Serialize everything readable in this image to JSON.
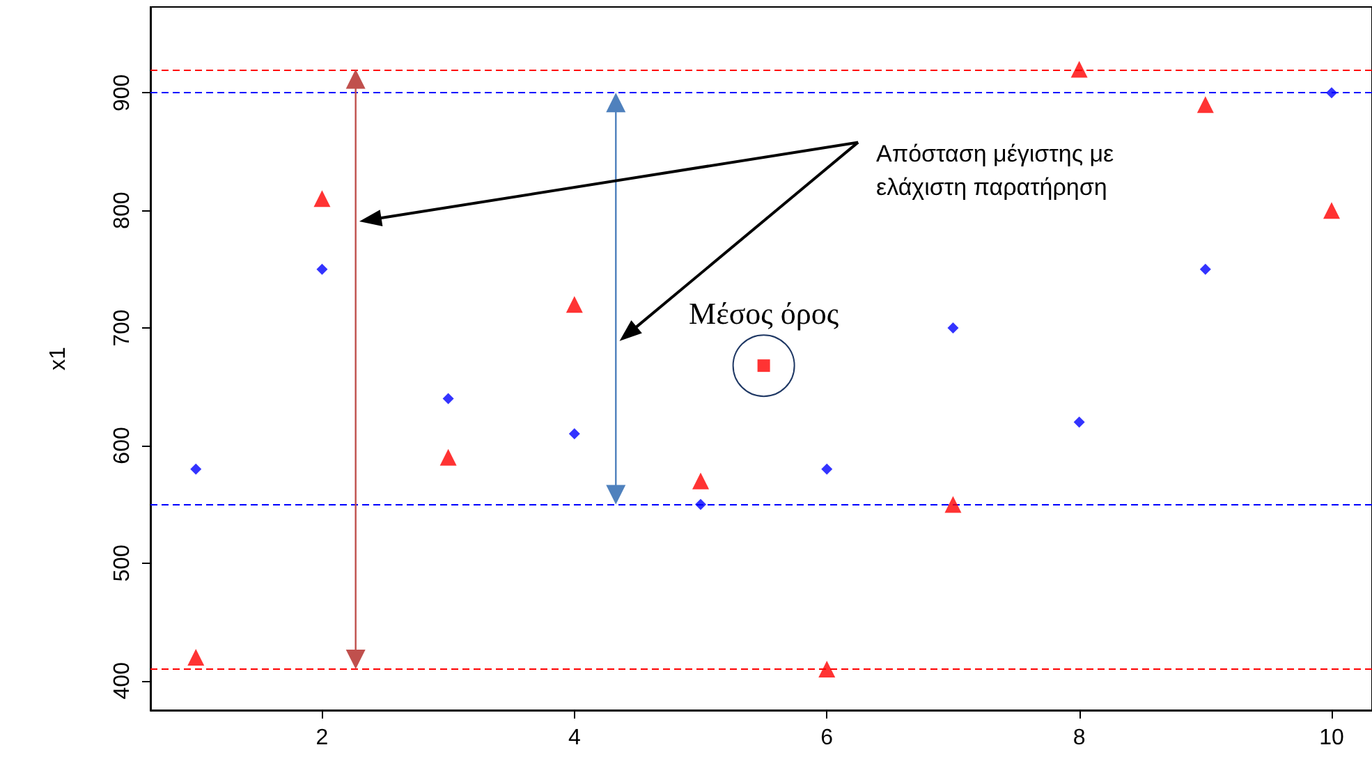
{
  "chart_data": {
    "type": "scatter",
    "ylabel": "x1",
    "x": [
      1,
      2,
      3,
      4,
      5,
      6,
      7,
      8,
      9,
      10
    ],
    "series": [
      {
        "color": "#0000ff",
        "marker": "diamond",
        "values": [
          580,
          750,
          640,
          610,
          550,
          580,
          700,
          620,
          750,
          900
        ]
      },
      {
        "color": "#ff0000",
        "marker": "triangle",
        "values": [
          420,
          810,
          590,
          720,
          570,
          410,
          550,
          920,
          890,
          800
        ]
      },
      {
        "color": "#ff0000",
        "marker": "square",
        "x": [
          5.5
        ],
        "values": [
          668
        ]
      }
    ],
    "xlim": [
      0.64,
      10.32
    ],
    "xticks": [
      2,
      4,
      6,
      8,
      10
    ],
    "ylim": [
      375,
      973
    ],
    "yticks": [
      400,
      500,
      600,
      700,
      800,
      900
    ],
    "grid": false,
    "ref_lines": [
      {
        "axis": "y",
        "value": 900,
        "color": "#0000ff",
        "line_style": "dashed"
      },
      {
        "axis": "y",
        "value": 550,
        "color": "#0000ff",
        "line_style": "dashed"
      },
      {
        "axis": "y",
        "value": 920,
        "color": "#ff0000",
        "line_style": "dashed"
      },
      {
        "axis": "y",
        "value": 410,
        "color": "#ff0000",
        "line_style": "dashed"
      }
    ],
    "annotations": [
      "Απόσταση μέγιστης με ελάχιστη παρατήρηση",
      {
        "text": "Μέσος όρος",
        "x": 5.5,
        "y": 668
      }
    ]
  }
}
